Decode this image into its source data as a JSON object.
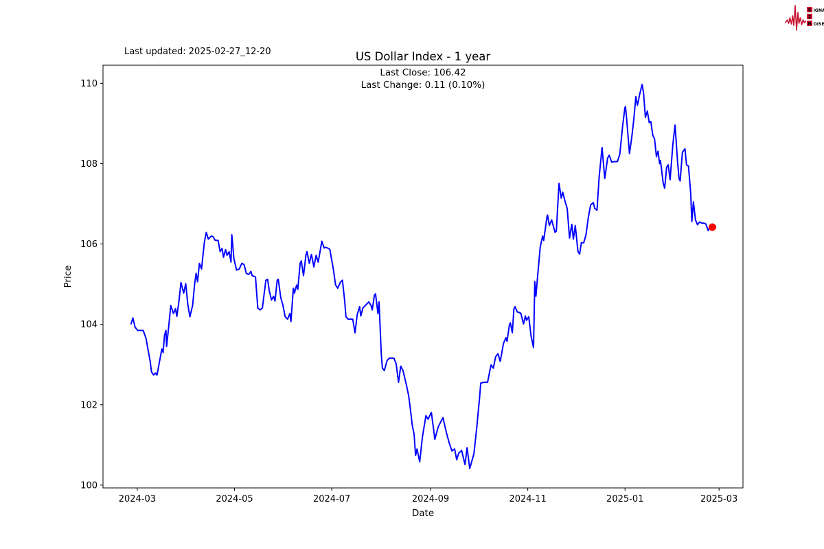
{
  "header": {
    "last_updated": "Last updated: 2025-02-27_12-20",
    "title": "US Dollar Index - 1 year",
    "annotation_line1": "Last Close: 106.42",
    "annotation_line2": "Last Change: 0.11 (0.10%)"
  },
  "logo": {
    "color": "#c8102e",
    "rows": [
      {
        "badge": "S",
        "rest": "IGNAL"
      },
      {
        "badge": "2",
        "rest": ""
      },
      {
        "badge": "N",
        "rest": "OISE"
      }
    ]
  },
  "chart_data": {
    "type": "line",
    "title": "US Dollar Index - 1 year",
    "xlabel": "Date",
    "ylabel": "Price",
    "legend": "none",
    "grid": false,
    "line_color": "#0000ff",
    "marker_color": "#ff0000",
    "last_close": 106.42,
    "last_change": "0.11 (0.10%)",
    "start_date": "2024-02-26",
    "x_axis": {
      "label": "Date",
      "lim_days": [
        -17.5,
        384
      ],
      "ticks": [
        {
          "label": "2024-03",
          "day": 4
        },
        {
          "label": "2024-05",
          "day": 65
        },
        {
          "label": "2024-07",
          "day": 126
        },
        {
          "label": "2024-09",
          "day": 188
        },
        {
          "label": "2024-11",
          "day": 249
        },
        {
          "label": "2025-01",
          "day": 310
        },
        {
          "label": "2025-03",
          "day": 369
        }
      ]
    },
    "y_axis": {
      "label": "Price",
      "lim": [
        99.93,
        110.45
      ],
      "ticks": [
        100,
        102,
        104,
        106,
        108,
        110
      ]
    },
    "points": [
      [
        0,
        104.0
      ],
      [
        1.3,
        104.16
      ],
      [
        2.6,
        103.93
      ],
      [
        4.3,
        103.85
      ],
      [
        6.5,
        103.85
      ],
      [
        7.7,
        103.85
      ],
      [
        9.5,
        103.65
      ],
      [
        10.8,
        103.36
      ],
      [
        12.1,
        103.08
      ],
      [
        12.9,
        102.82
      ],
      [
        14.2,
        102.74
      ],
      [
        15.5,
        102.79
      ],
      [
        16.4,
        102.74
      ],
      [
        17.6,
        103.0
      ],
      [
        19.4,
        103.39
      ],
      [
        20.2,
        103.3
      ],
      [
        21.1,
        103.73
      ],
      [
        22,
        103.85
      ],
      [
        22.4,
        103.45
      ],
      [
        23.7,
        103.93
      ],
      [
        25,
        104.47
      ],
      [
        26.7,
        104.27
      ],
      [
        28,
        104.39
      ],
      [
        28.8,
        104.2
      ],
      [
        30.1,
        104.56
      ],
      [
        31.4,
        105.04
      ],
      [
        33.1,
        104.78
      ],
      [
        34.4,
        105.01
      ],
      [
        35.7,
        104.5
      ],
      [
        37,
        104.19
      ],
      [
        38.7,
        104.47
      ],
      [
        40,
        105.01
      ],
      [
        40.9,
        105.27
      ],
      [
        41.8,
        105.06
      ],
      [
        43,
        105.52
      ],
      [
        44.3,
        105.38
      ],
      [
        46.1,
        106.04
      ],
      [
        47.3,
        106.29
      ],
      [
        48.6,
        106.12
      ],
      [
        50.4,
        106.2
      ],
      [
        51.6,
        106.18
      ],
      [
        52.9,
        106.09
      ],
      [
        54.7,
        106.09
      ],
      [
        56,
        105.81
      ],
      [
        57.2,
        105.89
      ],
      [
        58.1,
        105.67
      ],
      [
        59.4,
        105.86
      ],
      [
        60.3,
        105.72
      ],
      [
        61.6,
        105.81
      ],
      [
        62.8,
        105.55
      ],
      [
        63.3,
        106.23
      ],
      [
        64.6,
        105.64
      ],
      [
        66.3,
        105.35
      ],
      [
        68,
        105.38
      ],
      [
        69.6,
        105.52
      ],
      [
        71,
        105.49
      ],
      [
        72.4,
        105.27
      ],
      [
        73.9,
        105.24
      ],
      [
        75.3,
        105.32
      ],
      [
        76.1,
        105.21
      ],
      [
        78.2,
        105.18
      ],
      [
        78.9,
        104.78
      ],
      [
        79.6,
        104.41
      ],
      [
        81.1,
        104.36
      ],
      [
        82.5,
        104.41
      ],
      [
        84.7,
        105.1
      ],
      [
        85.8,
        105.12
      ],
      [
        86.8,
        104.84
      ],
      [
        88.2,
        104.61
      ],
      [
        89.5,
        104.7
      ],
      [
        90.4,
        104.58
      ],
      [
        91.8,
        105.1
      ],
      [
        92.5,
        105.12
      ],
      [
        94,
        104.67
      ],
      [
        95.4,
        104.47
      ],
      [
        96.8,
        104.19
      ],
      [
        98.3,
        104.13
      ],
      [
        99.7,
        104.27
      ],
      [
        100.4,
        104.07
      ],
      [
        101.9,
        104.9
      ],
      [
        102.6,
        104.78
      ],
      [
        104,
        104.98
      ],
      [
        104.7,
        104.87
      ],
      [
        106.2,
        105.52
      ],
      [
        106.9,
        105.58
      ],
      [
        108.3,
        105.21
      ],
      [
        109.8,
        105.72
      ],
      [
        110.5,
        105.81
      ],
      [
        111.9,
        105.52
      ],
      [
        113.3,
        105.74
      ],
      [
        114.8,
        105.43
      ],
      [
        116.2,
        105.72
      ],
      [
        117.5,
        105.55
      ],
      [
        119.8,
        106.07
      ],
      [
        121.2,
        105.9
      ],
      [
        121.9,
        105.92
      ],
      [
        123.4,
        105.9
      ],
      [
        124.8,
        105.87
      ],
      [
        127,
        105.38
      ],
      [
        128.4,
        104.98
      ],
      [
        129.8,
        104.9
      ],
      [
        131.3,
        105.04
      ],
      [
        132.7,
        105.1
      ],
      [
        134.2,
        104.56
      ],
      [
        134.9,
        104.19
      ],
      [
        136.3,
        104.13
      ],
      [
        139.2,
        104.13
      ],
      [
        140.6,
        103.79
      ],
      [
        142,
        104.24
      ],
      [
        143.5,
        104.44
      ],
      [
        144.2,
        104.21
      ],
      [
        145.6,
        104.41
      ],
      [
        147.1,
        104.47
      ],
      [
        149.2,
        104.56
      ],
      [
        150.7,
        104.47
      ],
      [
        151.4,
        104.36
      ],
      [
        152.8,
        104.73
      ],
      [
        153.5,
        104.76
      ],
      [
        155,
        104.27
      ],
      [
        155.7,
        104.56
      ],
      [
        157.1,
        103.25
      ],
      [
        157.8,
        102.91
      ],
      [
        159,
        102.85
      ],
      [
        160.7,
        103.1
      ],
      [
        162.1,
        103.16
      ],
      [
        165,
        103.16
      ],
      [
        166.4,
        103.02
      ],
      [
        167.9,
        102.56
      ],
      [
        169.3,
        102.96
      ],
      [
        170.7,
        102.85
      ],
      [
        172.9,
        102.48
      ],
      [
        174.3,
        102.22
      ],
      [
        175.7,
        101.77
      ],
      [
        176.5,
        101.5
      ],
      [
        177.7,
        101.26
      ],
      [
        178.6,
        100.74
      ],
      [
        179.5,
        100.9
      ],
      [
        181.2,
        100.58
      ],
      [
        182.9,
        101.2
      ],
      [
        185.1,
        101.73
      ],
      [
        186.4,
        101.64
      ],
      [
        188.5,
        101.81
      ],
      [
        190.7,
        101.14
      ],
      [
        192.8,
        101.45
      ],
      [
        195.8,
        101.68
      ],
      [
        198,
        101.3
      ],
      [
        199.7,
        101.05
      ],
      [
        201.4,
        100.85
      ],
      [
        203.1,
        100.9
      ],
      [
        204.4,
        100.63
      ],
      [
        205.7,
        100.8
      ],
      [
        207.5,
        100.86
      ],
      [
        209.6,
        100.51
      ],
      [
        210.9,
        100.93
      ],
      [
        212.6,
        100.41
      ],
      [
        215.2,
        100.78
      ],
      [
        216.9,
        101.4
      ],
      [
        218.7,
        102.15
      ],
      [
        219.5,
        102.54
      ],
      [
        221.7,
        102.56
      ],
      [
        223.8,
        102.56
      ],
      [
        225.2,
        102.85
      ],
      [
        226,
        102.99
      ],
      [
        227.4,
        102.91
      ],
      [
        228.8,
        103.19
      ],
      [
        230.3,
        103.27
      ],
      [
        231.7,
        103.08
      ],
      [
        233.8,
        103.53
      ],
      [
        235.3,
        103.67
      ],
      [
        236,
        103.58
      ],
      [
        237.5,
        103.99
      ],
      [
        238.1,
        104.04
      ],
      [
        239.3,
        103.79
      ],
      [
        240.3,
        104.38
      ],
      [
        241,
        104.44
      ],
      [
        242.4,
        104.31
      ],
      [
        244.6,
        104.28
      ],
      [
        246.3,
        104.01
      ],
      [
        247.5,
        104.21
      ],
      [
        248.2,
        104.1
      ],
      [
        249.6,
        104.19
      ],
      [
        251.1,
        103.7
      ],
      [
        252.6,
        103.42
      ],
      [
        253.4,
        105.07
      ],
      [
        254.1,
        104.7
      ],
      [
        254.9,
        105.07
      ],
      [
        256.8,
        105.92
      ],
      [
        258.3,
        106.2
      ],
      [
        259,
        106.09
      ],
      [
        261.1,
        106.69
      ],
      [
        261.4,
        106.72
      ],
      [
        262.5,
        106.46
      ],
      [
        264,
        106.6
      ],
      [
        266.1,
        106.29
      ],
      [
        266.9,
        106.32
      ],
      [
        268.6,
        107.51
      ],
      [
        270,
        107.14
      ],
      [
        270.9,
        107.29
      ],
      [
        272.6,
        107.03
      ],
      [
        273.7,
        106.89
      ],
      [
        275.2,
        106.15
      ],
      [
        276.6,
        106.49
      ],
      [
        277.6,
        106.12
      ],
      [
        278.8,
        106.46
      ],
      [
        280.5,
        105.81
      ],
      [
        281.5,
        105.75
      ],
      [
        282.6,
        106.03
      ],
      [
        284.1,
        106.03
      ],
      [
        285.5,
        106.23
      ],
      [
        287,
        106.66
      ],
      [
        288.4,
        106.97
      ],
      [
        290.1,
        107.03
      ],
      [
        291,
        106.89
      ],
      [
        292.4,
        106.84
      ],
      [
        293.8,
        107.68
      ],
      [
        295.6,
        108.4
      ],
      [
        297.3,
        107.63
      ],
      [
        299.1,
        108.14
      ],
      [
        300.1,
        108.21
      ],
      [
        301.6,
        108.04
      ],
      [
        303.4,
        108.05
      ],
      [
        305.2,
        108.05
      ],
      [
        306.7,
        108.23
      ],
      [
        308.5,
        108.93
      ],
      [
        309.9,
        109.39
      ],
      [
        310.3,
        109.42
      ],
      [
        311.3,
        108.99
      ],
      [
        312.8,
        108.25
      ],
      [
        314.2,
        108.65
      ],
      [
        315.6,
        109.13
      ],
      [
        316.8,
        109.67
      ],
      [
        317.8,
        109.45
      ],
      [
        319.2,
        109.73
      ],
      [
        320.7,
        109.97
      ],
      [
        321.6,
        109.76
      ],
      [
        322.8,
        109.15
      ],
      [
        324,
        109.31
      ],
      [
        325.2,
        109.02
      ],
      [
        326.2,
        109.05
      ],
      [
        327.4,
        108.71
      ],
      [
        328.5,
        108.62
      ],
      [
        329.7,
        108.17
      ],
      [
        330.7,
        108.31
      ],
      [
        331.7,
        108.0
      ],
      [
        332.2,
        108.08
      ],
      [
        334,
        107.51
      ],
      [
        334.9,
        107.39
      ],
      [
        336.1,
        107.91
      ],
      [
        337.1,
        107.97
      ],
      [
        338.3,
        107.6
      ],
      [
        340,
        108.48
      ],
      [
        341.4,
        108.96
      ],
      [
        342.9,
        108.08
      ],
      [
        343.9,
        107.63
      ],
      [
        344.6,
        107.57
      ],
      [
        346,
        108.28
      ],
      [
        347.6,
        108.37
      ],
      [
        348.6,
        107.97
      ],
      [
        349.8,
        107.94
      ],
      [
        351.2,
        107.26
      ],
      [
        351.9,
        106.56
      ],
      [
        352.9,
        107.05
      ],
      [
        354.2,
        106.6
      ],
      [
        355.5,
        106.48
      ],
      [
        356.8,
        106.55
      ],
      [
        358.1,
        106.52
      ],
      [
        359.4,
        106.52
      ],
      [
        360.7,
        106.5
      ],
      [
        362.2,
        106.33
      ],
      [
        363.1,
        106.43
      ],
      [
        363.9,
        106.4
      ],
      [
        364.8,
        106.42
      ]
    ]
  }
}
